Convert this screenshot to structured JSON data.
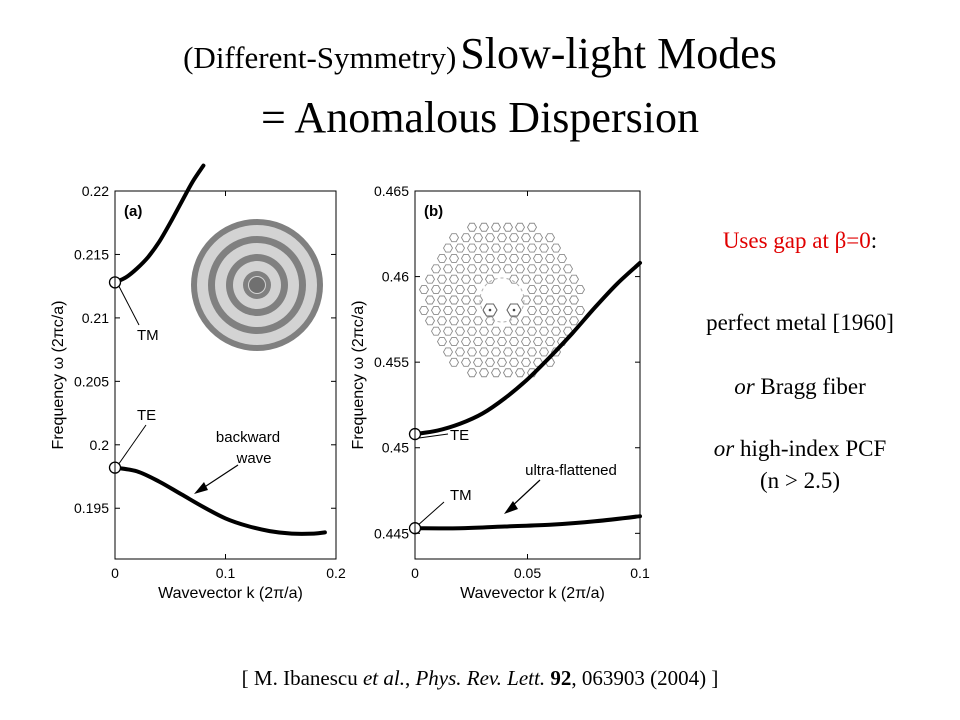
{
  "title": {
    "prefix": "(Different-Symmetry)",
    "main": "Slow-light Modes",
    "line2": "= Anomalous Dispersion"
  },
  "side_notes": {
    "gap_prefix": "Uses gap at ",
    "gap_symbol": "β=0",
    "gap_suffix": ":",
    "metal": "perfect metal [1960]",
    "or1": "or",
    "bragg": " Bragg fiber",
    "or2": "or",
    "pcf": " high-index PCF",
    "pcf_n": "(n > 2.5)"
  },
  "citation": {
    "open": "[ M. Ibanescu ",
    "etal": "et al.",
    "sep1": ", ",
    "journal": "Phys. Rev. Lett.",
    "space": " ",
    "volume": "92",
    "rest": ", 063903 (2004) ]"
  },
  "colors": {
    "curve": "#000000",
    "ring_gray": "#808080",
    "ring_light": "#d3d3d3",
    "red": "#e00000"
  },
  "chart_data": [
    {
      "type": "line",
      "panel_label": "(a)",
      "xlabel": "Wavevector k (2π/a)",
      "ylabel": "Frequency ω (2πc/a)",
      "xlim": [
        0,
        0.2
      ],
      "ylim": [
        0.191,
        0.22
      ],
      "xticks": [
        "0",
        "0.1",
        "0.2"
      ],
      "yticks": [
        "0.195",
        "0.2",
        "0.205",
        "0.21",
        "0.215",
        "0.22"
      ],
      "series": [
        {
          "name": "TM",
          "x": [
            0,
            0.01,
            0.02,
            0.03,
            0.04,
            0.05,
            0.06,
            0.07,
            0.08
          ],
          "y": [
            0.2128,
            0.2132,
            0.2139,
            0.2148,
            0.216,
            0.2175,
            0.2191,
            0.2207,
            0.222
          ]
        },
        {
          "name": "TE",
          "x": [
            0,
            0.02,
            0.04,
            0.06,
            0.08,
            0.1,
            0.12,
            0.14,
            0.16,
            0.18,
            0.19
          ],
          "y": [
            0.1982,
            0.1979,
            0.1971,
            0.1961,
            0.1951,
            0.1942,
            0.1936,
            0.1932,
            0.193,
            0.193,
            0.1931
          ]
        }
      ],
      "annotations": [
        "TM",
        "TE",
        "backward",
        "wave"
      ]
    },
    {
      "type": "line",
      "panel_label": "(b)",
      "xlabel": "Wavevector k (2π/a)",
      "ylabel": "Frequency ω (2πc/a)",
      "xlim": [
        0,
        0.1
      ],
      "ylim": [
        0.4435,
        0.465
      ],
      "xticks": [
        "0",
        "0.05",
        "0.1"
      ],
      "yticks": [
        "0.445",
        "0.45",
        "0.455",
        "0.46",
        "0.465"
      ],
      "series": [
        {
          "name": "TE",
          "x": [
            0,
            0.01,
            0.02,
            0.03,
            0.04,
            0.05,
            0.06,
            0.07,
            0.08,
            0.09,
            0.1
          ],
          "y": [
            0.4508,
            0.451,
            0.4514,
            0.452,
            0.4529,
            0.454,
            0.4553,
            0.4567,
            0.4582,
            0.4596,
            0.4608
          ]
        },
        {
          "name": "TM",
          "x": [
            0,
            0.02,
            0.04,
            0.06,
            0.08,
            0.1
          ],
          "y": [
            0.4453,
            0.4453,
            0.4454,
            0.4455,
            0.4457,
            0.446
          ]
        }
      ],
      "annotations": [
        "TE",
        "TM",
        "ultra-flattened"
      ]
    }
  ]
}
